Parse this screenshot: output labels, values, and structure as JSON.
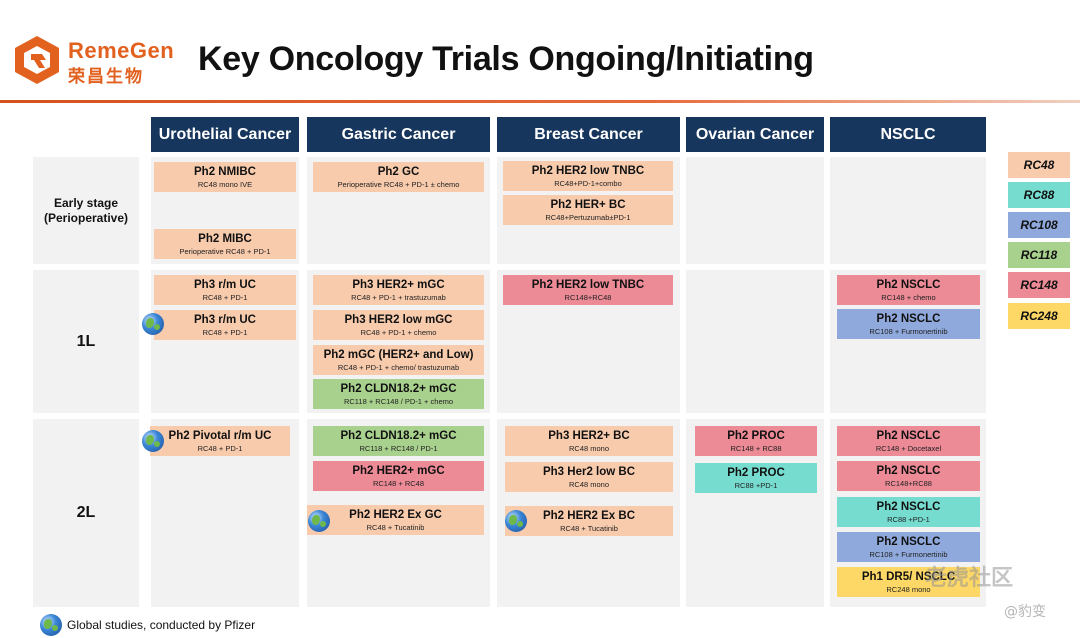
{
  "logo": {
    "en": "RemeGen",
    "cn": "荣昌生物"
  },
  "title": "Key Oncology Trials Ongoing/Initiating",
  "columns": [
    "Urothelial Cancer",
    "Gastric Cancer",
    "Breast Cancer",
    "Ovarian Cancer",
    "NSCLC"
  ],
  "rows": [
    "Early stage\n(Perioperative)",
    "1L",
    "2L"
  ],
  "legend": [
    "RC48",
    "RC88",
    "RC108",
    "RC118",
    "RC148",
    "RC248"
  ],
  "colors": {
    "RC48": "#f8cbad",
    "RC88": "#76dcd0",
    "RC108": "#8fa9dc",
    "RC118": "#a9d18e",
    "RC148": "#ec8a96",
    "RC248": "#fdd866",
    "header": "#17365d",
    "accent": "#e2611f"
  },
  "trials": [
    {
      "title": "Ph2 NMIBC",
      "sub": "RC48 mono IVE",
      "drug": "RC48"
    },
    {
      "title": "Ph2 MIBC",
      "sub": "Perioperative RC48 + PD-1",
      "drug": "RC48"
    },
    {
      "title": "Ph2 GC",
      "sub": "Perioperative RC48 + PD-1 ± chemo",
      "drug": "RC48"
    },
    {
      "title": "Ph2 HER2 low TNBC",
      "sub": "RC48+PD-1+combo",
      "drug": "RC48"
    },
    {
      "title": "Ph2 HER+ BC",
      "sub": "RC48+Pertuzumab±PD-1",
      "drug": "RC48"
    },
    {
      "title": "Ph3 r/m UC",
      "sub": "RC48 + PD-1",
      "drug": "RC48"
    },
    {
      "title": "Ph3 r/m UC",
      "sub": "RC48 + PD-1",
      "drug": "RC48",
      "global": true
    },
    {
      "title": "Ph3 HER2+ mGC",
      "sub": "RC48 + PD-1 + trastuzumab",
      "drug": "RC48"
    },
    {
      "title": "Ph3 HER2 low mGC",
      "sub": "RC48 + PD-1 + chemo",
      "drug": "RC48"
    },
    {
      "title": "Ph2 mGC (HER2+ and Low)",
      "sub": "RC48 + PD-1 + chemo/ trastuzumab",
      "drug": "RC48"
    },
    {
      "title": "Ph2 CLDN18.2+ mGC",
      "sub": "RC118 + RC148 / PD-1 + chemo",
      "drug": "RC118"
    },
    {
      "title": "Ph2 HER2 low TNBC",
      "sub": "RC148+RC48",
      "drug": "RC148"
    },
    {
      "title": "Ph2 NSCLC",
      "sub": "RC148 + chemo",
      "drug": "RC148"
    },
    {
      "title": "Ph2 NSCLC",
      "sub": "RC108 + Furmonertinib",
      "drug": "RC108"
    },
    {
      "title": "Ph2 Pivotal r/m UC",
      "sub": "RC48 + PD-1",
      "drug": "RC48",
      "global": true
    },
    {
      "title": "Ph2 CLDN18.2+ mGC",
      "sub": "RC118 + RC148 / PD-1",
      "drug": "RC118"
    },
    {
      "title": "Ph2 HER2+ mGC",
      "sub": "RC148 + RC48",
      "drug": "RC148"
    },
    {
      "title": "Ph2 HER2 Ex GC",
      "sub": "RC48 + Tucatinib",
      "drug": "RC48",
      "global": true
    },
    {
      "title": "Ph3 HER2+ BC",
      "sub": "RC48 mono",
      "drug": "RC48"
    },
    {
      "title": "Ph3 Her2 low BC",
      "sub": "RC48 mono",
      "drug": "RC48"
    },
    {
      "title": "Ph2 HER2 Ex BC",
      "sub": "RC48 + Tucatinib",
      "drug": "RC48",
      "global": true
    },
    {
      "title": "Ph2 PROC",
      "sub": "RC148 + RC88",
      "drug": "RC148"
    },
    {
      "title": "Ph2 PROC",
      "sub": "RC88 +PD-1",
      "drug": "RC88"
    },
    {
      "title": "Ph2 NSCLC",
      "sub": "RC148 + Docetaxel",
      "drug": "RC148"
    },
    {
      "title": "Ph2 NSCLC",
      "sub": "RC148+RC88",
      "drug": "RC148"
    },
    {
      "title": "Ph2 NSCLC",
      "sub": "RC88 +PD-1",
      "drug": "RC88"
    },
    {
      "title": "Ph2 NSCLC",
      "sub": "RC108 + Furmonertinib",
      "drug": "RC108"
    },
    {
      "title": "Ph1 DR5/ NSCLC",
      "sub": "RC248 mono",
      "drug": "RC248"
    }
  ],
  "footnote": "Global studies, conducted by Pfizer",
  "watermark": {
    "main": "老虎社区",
    "handle": "@豹变"
  }
}
